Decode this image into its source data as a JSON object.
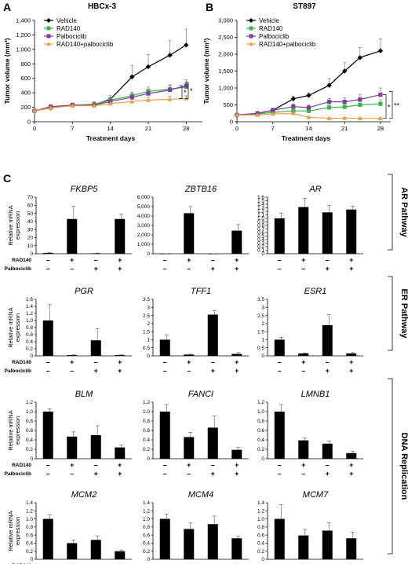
{
  "panel_labels": {
    "a": "A",
    "b": "B",
    "c": "C"
  },
  "treatment_labels": [
    "RAD140",
    "Palbociclib"
  ],
  "treatment_signs": {
    "rad140": [
      "–",
      "+",
      "–",
      "+"
    ],
    "palbo": [
      "–",
      "–",
      "+",
      "+"
    ]
  },
  "pathways": [
    "AR Pathway",
    "ER Pathway",
    "DNA Replication"
  ],
  "colors": {
    "vehicle": "#000000",
    "rad140": "#3bb54a",
    "palbociclib": "#7a3fa0",
    "combo": "#f0a04b"
  },
  "chart_data": [
    {
      "type": "line",
      "title": "HBCx-3",
      "xlabel": "Treatment days",
      "ylabel": "Tumor volume (mm³)",
      "xlim": [
        0,
        31
      ],
      "ylim": [
        0,
        1400
      ],
      "xticks": [
        "0",
        "7",
        "14",
        "21",
        "28"
      ],
      "yticks": [
        "0",
        "200",
        "400",
        "600",
        "800",
        "1,000",
        "1,200",
        "1,400"
      ],
      "legend_position": "top-left",
      "significance": [
        "*",
        "*"
      ],
      "series": [
        {
          "name": "Vehicle",
          "marker": "diamond",
          "x": [
            0,
            3,
            7,
            11,
            14,
            18,
            21,
            25,
            28
          ],
          "y": [
            150,
            190,
            230,
            235,
            310,
            620,
            760,
            920,
            1060
          ],
          "err": [
            20,
            25,
            30,
            40,
            50,
            160,
            170,
            200,
            220
          ]
        },
        {
          "name": "RAD140",
          "marker": "square",
          "x": [
            0,
            3,
            7,
            11,
            14,
            18,
            21,
            25,
            28
          ],
          "y": [
            150,
            200,
            230,
            240,
            300,
            360,
            420,
            450,
            480
          ],
          "err": [
            15,
            20,
            25,
            30,
            35,
            50,
            60,
            60,
            70
          ]
        },
        {
          "name": "Palbociclib",
          "marker": "square",
          "x": [
            0,
            3,
            7,
            11,
            14,
            18,
            21,
            25,
            28
          ],
          "y": [
            150,
            210,
            230,
            230,
            280,
            340,
            390,
            440,
            500
          ],
          "err": [
            15,
            20,
            25,
            25,
            40,
            50,
            60,
            60,
            80
          ]
        },
        {
          "name": "RAD140+palbociclib",
          "marker": "triangle",
          "x": [
            0,
            3,
            7,
            11,
            14,
            18,
            21,
            25,
            28
          ],
          "y": [
            150,
            190,
            220,
            220,
            250,
            280,
            300,
            310,
            320
          ],
          "err": [
            15,
            20,
            20,
            25,
            30,
            30,
            40,
            40,
            40
          ]
        }
      ]
    },
    {
      "type": "line",
      "title": "ST897",
      "xlabel": "Treatment days",
      "ylabel": "Tumor volume (mm³)",
      "xlim": [
        0,
        30
      ],
      "ylim": [
        0,
        3000
      ],
      "xticks": [
        "0",
        "7",
        "14",
        "21",
        "28"
      ],
      "yticks": [
        "0",
        "500",
        "1,000",
        "1,500",
        "2,000",
        "2,500",
        "3,000"
      ],
      "legend_position": "top-left",
      "significance": [
        "*",
        "**"
      ],
      "series": [
        {
          "name": "Vehicle",
          "marker": "diamond",
          "x": [
            0,
            4,
            7,
            11,
            14,
            18,
            21,
            24,
            28
          ],
          "y": [
            200,
            250,
            340,
            680,
            780,
            1080,
            1500,
            1900,
            2100
          ],
          "err": [
            30,
            40,
            60,
            70,
            80,
            200,
            250,
            300,
            350
          ]
        },
        {
          "name": "RAD140",
          "marker": "square",
          "x": [
            0,
            4,
            7,
            11,
            14,
            18,
            21,
            24,
            28
          ],
          "y": [
            200,
            230,
            280,
            320,
            320,
            420,
            440,
            500,
            530
          ],
          "err": [
            30,
            40,
            50,
            60,
            70,
            80,
            90,
            100,
            120
          ]
        },
        {
          "name": "Palbociclib",
          "marker": "square",
          "x": [
            0,
            4,
            7,
            11,
            14,
            18,
            21,
            24,
            28
          ],
          "y": [
            200,
            250,
            340,
            450,
            420,
            590,
            590,
            660,
            800
          ],
          "err": [
            30,
            40,
            50,
            80,
            90,
            100,
            120,
            150,
            200
          ]
        },
        {
          "name": "RAD140+palbociclib",
          "marker": "triangle",
          "x": [
            0,
            4,
            7,
            11,
            14,
            18,
            21,
            24,
            28
          ],
          "y": [
            200,
            200,
            230,
            250,
            130,
            100,
            110,
            100,
            100
          ],
          "err": [
            30,
            30,
            40,
            50,
            30,
            20,
            20,
            20,
            20
          ]
        }
      ]
    },
    {
      "type": "bar",
      "title": "FKBP5",
      "ylabel": "Relative mRNA expression",
      "ylim": [
        0,
        70
      ],
      "yticks": [
        "0",
        "10",
        "20",
        "30",
        "40",
        "50",
        "60",
        "70"
      ],
      "values": [
        1,
        43,
        0.5,
        43
      ],
      "err": [
        0.5,
        16,
        0.3,
        6
      ]
    },
    {
      "type": "bar",
      "title": "ZBTB16",
      "ylim": [
        0,
        6000
      ],
      "yticks": [
        "0",
        "1,000",
        "2,000",
        "3,000",
        "4,000",
        "5,000",
        "6,000"
      ],
      "values": [
        1,
        4300,
        1,
        2450
      ],
      "err": [
        1,
        700,
        1,
        650
      ]
    },
    {
      "type": "bar",
      "title": "AR",
      "ylim": [
        0,
        1.6
      ],
      "yticks": [
        "0",
        "0.1",
        "0.2",
        "0.3",
        "0.4",
        "0.5",
        "0.6",
        "0.7",
        "0.8",
        "0.9",
        "1.0",
        "1.1",
        "1.2",
        "1.3",
        "1.4",
        "1.5",
        "1.6"
      ],
      "values": [
        1.0,
        1.32,
        1.17,
        1.25
      ],
      "err": [
        0.15,
        0.25,
        0.2,
        0.1
      ]
    },
    {
      "type": "bar",
      "title": "PGR",
      "ylabel": "Relative mRNA expression",
      "ylim": [
        0,
        1.6
      ],
      "yticks": [
        "0",
        "0.2",
        "0.4",
        "0.6",
        "0.8",
        "1.0",
        "1.2",
        "1.4",
        "1.6"
      ],
      "values": [
        1.0,
        0.02,
        0.44,
        0.02
      ],
      "err": [
        0.45,
        0.01,
        0.33,
        0.01
      ]
    },
    {
      "type": "bar",
      "title": "TFF1",
      "ylim": [
        0,
        3.5
      ],
      "yticks": [
        "0",
        "0.5",
        "1",
        "1.5",
        "2",
        "2.5",
        "3",
        "3.5"
      ],
      "values": [
        1.0,
        0.08,
        2.55,
        0.12
      ],
      "err": [
        0.3,
        0.02,
        0.25,
        0.08
      ]
    },
    {
      "type": "bar",
      "title": "ESR1",
      "ylim": [
        0,
        3.5
      ],
      "yticks": [
        "0",
        "0.5",
        "1",
        "1.5",
        "2",
        "2.5",
        "3",
        "3.5"
      ],
      "values": [
        1.0,
        0.15,
        1.9,
        0.15
      ],
      "err": [
        0.15,
        0.03,
        0.65,
        0.05
      ]
    },
    {
      "type": "bar",
      "title": "BLM",
      "ylabel": "Relative mRNA expression",
      "ylim": [
        0,
        1.2
      ],
      "yticks": [
        "0",
        "0.2",
        "0.4",
        "0.6",
        "0.8",
        "1.0",
        "1.2"
      ],
      "values": [
        1.0,
        0.47,
        0.5,
        0.24
      ],
      "err": [
        0.06,
        0.1,
        0.2,
        0.05
      ]
    },
    {
      "type": "bar",
      "title": "FANCI",
      "ylim": [
        0,
        1.2
      ],
      "yticks": [
        "0",
        "0.2",
        "0.4",
        "0.6",
        "0.8",
        "1.0",
        "1.2"
      ],
      "values": [
        1.0,
        0.46,
        0.66,
        0.19
      ],
      "err": [
        0.15,
        0.1,
        0.25,
        0.05
      ]
    },
    {
      "type": "bar",
      "title": "LMNB1",
      "ylim": [
        0,
        1.2
      ],
      "yticks": [
        "0",
        "0.2",
        "0.4",
        "0.6",
        "0.8",
        "1.0",
        "1.2"
      ],
      "values": [
        1.0,
        0.39,
        0.32,
        0.12
      ],
      "err": [
        0.15,
        0.05,
        0.06,
        0.04
      ]
    },
    {
      "type": "bar",
      "title": "MCM2",
      "ylabel": "Relative mRNA expression",
      "ylim": [
        0,
        1.4
      ],
      "yticks": [
        "0",
        "0.2",
        "0.4",
        "0.6",
        "0.8",
        "1.0",
        "1.2",
        "1.4"
      ],
      "values": [
        1.0,
        0.4,
        0.48,
        0.2
      ],
      "err": [
        0.1,
        0.08,
        0.1,
        0.03
      ]
    },
    {
      "type": "bar",
      "title": "MCM4",
      "ylim": [
        0,
        1.4
      ],
      "yticks": [
        "0",
        "0.2",
        "0.4",
        "0.6",
        "0.8",
        "1.0",
        "1.2",
        "1.4"
      ],
      "values": [
        1.0,
        0.75,
        0.87,
        0.52
      ],
      "err": [
        0.12,
        0.15,
        0.2,
        0.05
      ]
    },
    {
      "type": "bar",
      "title": "MCM7",
      "ylim": [
        0,
        1.4
      ],
      "yticks": [
        "0",
        "0.2",
        "0.4",
        "0.6",
        "0.8",
        "1.0",
        "1.2",
        "1.4"
      ],
      "values": [
        1.0,
        0.59,
        0.71,
        0.52
      ],
      "err": [
        0.35,
        0.15,
        0.2,
        0.15
      ]
    }
  ]
}
